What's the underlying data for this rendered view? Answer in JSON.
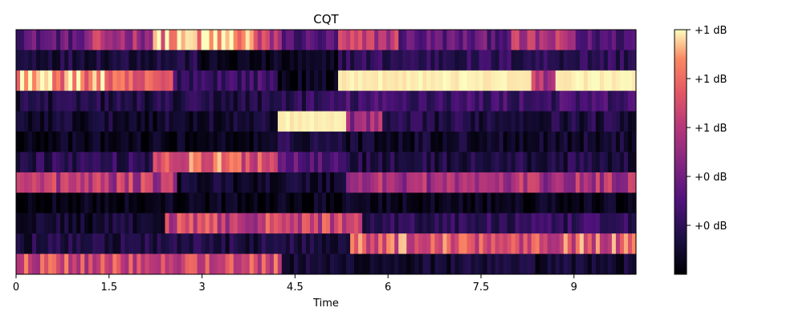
{
  "chart_data": {
    "type": "heatmap",
    "title": "CQT",
    "xlabel": "Time",
    "ylabel": "",
    "xlim": [
      0,
      10
    ],
    "x_ticks": [
      {
        "value": 0,
        "label": "0"
      },
      {
        "value": 1.5,
        "label": "1.5"
      },
      {
        "value": 3,
        "label": "3"
      },
      {
        "value": 4.5,
        "label": "4.5"
      },
      {
        "value": 6,
        "label": "6"
      },
      {
        "value": 7.5,
        "label": "7.5"
      },
      {
        "value": 9,
        "label": "9"
      }
    ],
    "colormap": "magma",
    "colorbar": {
      "tick_labels": [
        "+1 dB",
        "+1 dB",
        "+1 dB",
        "+0 dB",
        "+0 dB"
      ],
      "tick_values": [
        1.0,
        0.8,
        0.6,
        0.4,
        0.2
      ],
      "range": [
        0,
        1
      ]
    },
    "rows_top_to_bottom": [
      {
        "segments": [
          [
            0,
            1.2,
            0.35
          ],
          [
            1.2,
            2.2,
            0.55
          ],
          [
            2.2,
            3.8,
            0.9
          ],
          [
            3.8,
            4.3,
            0.6
          ],
          [
            4.3,
            5.2,
            0.3
          ],
          [
            5.2,
            6.2,
            0.6
          ],
          [
            6.2,
            8.0,
            0.35
          ],
          [
            8.0,
            9.0,
            0.55
          ],
          [
            9.0,
            10.0,
            0.3
          ]
        ]
      },
      {
        "segments": [
          [
            0,
            3.0,
            0.15
          ],
          [
            3.0,
            5.2,
            0.05
          ],
          [
            5.2,
            10.0,
            0.2
          ]
        ]
      },
      {
        "segments": [
          [
            0,
            1.5,
            0.9
          ],
          [
            1.5,
            2.5,
            0.7
          ],
          [
            2.5,
            4.2,
            0.25
          ],
          [
            4.2,
            5.2,
            0.05
          ],
          [
            5.2,
            8.3,
            1.0
          ],
          [
            8.3,
            8.7,
            0.6
          ],
          [
            8.7,
            10.0,
            1.0
          ]
        ]
      },
      {
        "segments": [
          [
            0,
            4.2,
            0.15
          ],
          [
            4.2,
            5.2,
            0.2
          ],
          [
            5.2,
            10.0,
            0.25
          ]
        ]
      },
      {
        "segments": [
          [
            0,
            4.2,
            0.1
          ],
          [
            4.2,
            5.3,
            1.0
          ],
          [
            5.3,
            5.9,
            0.5
          ],
          [
            5.9,
            10.0,
            0.15
          ]
        ]
      },
      {
        "segments": [
          [
            0,
            4.2,
            0.05
          ],
          [
            4.2,
            5.3,
            0.15
          ],
          [
            5.3,
            10.0,
            0.1
          ]
        ]
      },
      {
        "segments": [
          [
            0,
            2.2,
            0.2
          ],
          [
            2.2,
            4.2,
            0.75
          ],
          [
            4.2,
            5.3,
            0.35
          ],
          [
            5.3,
            10.0,
            0.15
          ]
        ]
      },
      {
        "segments": [
          [
            0,
            2.6,
            0.6
          ],
          [
            2.6,
            5.3,
            0.1
          ],
          [
            5.3,
            10.0,
            0.55
          ]
        ]
      },
      {
        "segments": [
          [
            0,
            10.0,
            0.05
          ]
        ]
      },
      {
        "segments": [
          [
            0,
            2.4,
            0.1
          ],
          [
            2.4,
            5.6,
            0.65
          ],
          [
            5.6,
            10.0,
            0.2
          ]
        ]
      },
      {
        "segments": [
          [
            0,
            5.4,
            0.15
          ],
          [
            5.4,
            10.0,
            0.75
          ]
        ]
      },
      {
        "segments": [
          [
            0,
            4.3,
            0.7
          ],
          [
            4.3,
            10.0,
            0.1
          ]
        ]
      }
    ]
  }
}
